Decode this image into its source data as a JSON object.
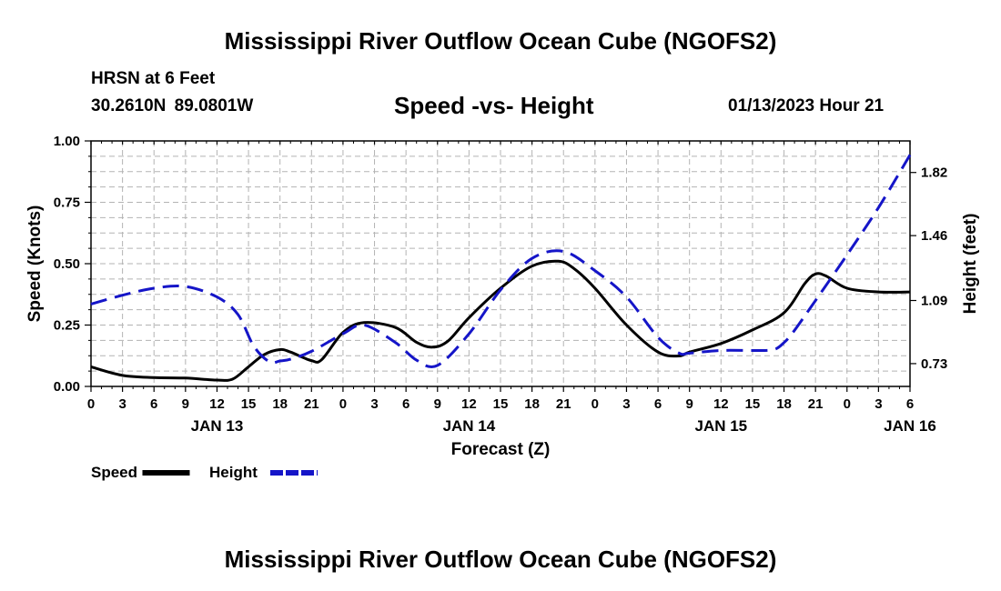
{
  "header": {
    "title": "Mississippi River Outflow Ocean Cube (NGOFS2)",
    "station": "HRSN at 6 Feet",
    "coords": "30.2610N  89.0801W",
    "subtitle": "Speed -vs- Height",
    "datetime": "01/13/2023 Hour 21"
  },
  "footer": {
    "title": "Mississippi River Outflow Ocean Cube (NGOFS2)"
  },
  "chart_data": {
    "type": "line",
    "title": "Speed -vs- Height",
    "xlabel": "Forecast (Z)",
    "ylabel": "Speed (Knots)",
    "y2label": "Height (feet)",
    "x_hours": [
      0,
      78
    ],
    "ylim": [
      0,
      1
    ],
    "y2lim": [
      0.6,
      2.0
    ],
    "y_ticks": [
      "0.00",
      "0.25",
      "0.50",
      "0.75",
      "1.00"
    ],
    "y2_ticks": [
      0.73,
      1.09,
      1.46,
      1.82
    ],
    "x_tick_labels": [
      "0",
      "3",
      "6",
      "9",
      "12",
      "15",
      "18",
      "21",
      "0",
      "3",
      "6",
      "9",
      "12",
      "15",
      "18",
      "21",
      "0",
      "3",
      "6",
      "9",
      "12",
      "15",
      "18",
      "21",
      "0",
      "3",
      "6"
    ],
    "day_labels": [
      {
        "label": "JAN 13",
        "hour": 12
      },
      {
        "label": "JAN 14",
        "hour": 36
      },
      {
        "label": "JAN 15",
        "hour": 60
      },
      {
        "label": "JAN 16",
        "hour": 78
      }
    ],
    "grid": true,
    "legend_position": "bottom-left",
    "series": [
      {
        "name": "Speed",
        "color": "#000000",
        "axis": "left",
        "style": "solid",
        "x": [
          0,
          3,
          6,
          9,
          12,
          13.5,
          15,
          16.5,
          18,
          19,
          21,
          22,
          24,
          26,
          29,
          31,
          32.5,
          34,
          36,
          39,
          42,
          44.5,
          46,
          48,
          51,
          54,
          56,
          57,
          60,
          63,
          66,
          68,
          69,
          70,
          72,
          75,
          78
        ],
        "values": [
          0.08,
          0.045,
          0.036,
          0.034,
          0.026,
          0.03,
          0.08,
          0.13,
          0.15,
          0.14,
          0.105,
          0.11,
          0.22,
          0.26,
          0.24,
          0.18,
          0.16,
          0.185,
          0.28,
          0.4,
          0.49,
          0.51,
          0.48,
          0.4,
          0.25,
          0.14,
          0.124,
          0.14,
          0.175,
          0.23,
          0.3,
          0.42,
          0.458,
          0.45,
          0.4,
          0.385,
          0.385
        ]
      },
      {
        "name": "Height",
        "color": "#1515c8",
        "axis": "right",
        "style": "dashed",
        "x": [
          0,
          3,
          6,
          9,
          12,
          14,
          15.5,
          17,
          18,
          19,
          21,
          24,
          26,
          29,
          31,
          33,
          36,
          39,
          42,
          45,
          48,
          51,
          54,
          56,
          57,
          60,
          63,
          65,
          66,
          67,
          69,
          72,
          75,
          78
        ],
        "values": [
          1.07,
          1.12,
          1.16,
          1.17,
          1.11,
          1.01,
          0.83,
          0.74,
          0.745,
          0.755,
          0.8,
          0.9,
          0.95,
          0.85,
          0.75,
          0.72,
          0.9,
          1.15,
          1.33,
          1.37,
          1.26,
          1.11,
          0.88,
          0.79,
          0.79,
          0.805,
          0.805,
          0.81,
          0.85,
          0.92,
          1.09,
          1.35,
          1.62,
          1.92
        ]
      }
    ]
  }
}
